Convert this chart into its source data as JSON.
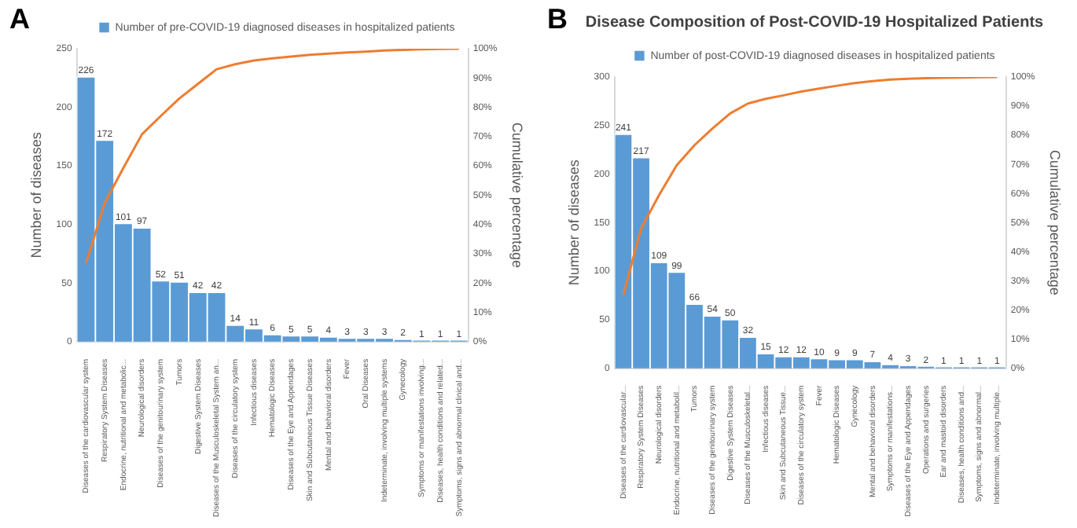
{
  "chart_data": [
    {
      "type": "bar",
      "annotations": [
        "A"
      ],
      "xlabel": null,
      "ylabel": "Number of diseases",
      "y2label": "Cumulative percentage",
      "categories": [
        "Diseases of the cardiovascular system",
        "Respiratory System Diseases",
        "Endocrine, nutritional and metabolic...",
        "Neurological disorders",
        "Diseases of the genitourinary system",
        "Tumors",
        "Digestive System Diseases",
        "Diseases of the Musculoskeletal System an...",
        "Diseases of the circulatory system",
        "Infectious diseases",
        "Hematologic Diseases",
        "Diseases of the Eye and Appendages",
        "Skin and Subcutaneous Tissue Diseases",
        "Mental and behavioral disorders",
        "Fever",
        "Oral Diseases",
        "Indeterminate, involving multiple systems",
        "Gynecology",
        "Symptoms or manifestations involving...",
        "Diseases, health conditions and related...",
        "Symptoms, signs and abnormal clinical and..."
      ],
      "series": [
        {
          "name": "Number of pre-COVID-19 diagnosed diseases in hospitalized patients",
          "color": "#5b9bd5",
          "values": [
            226,
            172,
            101,
            97,
            52,
            51,
            42,
            42,
            14,
            11,
            6,
            5,
            5,
            4,
            3,
            3,
            3,
            2,
            1,
            1,
            1
          ],
          "value_labels": [
            "226",
            "172",
            "101",
            "97",
            "52",
            "51",
            "42",
            "42",
            "14",
            "11",
            "6",
            "5",
            "5",
            "4",
            "3",
            "3",
            "3",
            "2",
            "1",
            "1",
            "1"
          ]
        },
        {
          "type": "line",
          "axis": "y2",
          "color": "#ed7d31",
          "values": [
            26.8,
            47.3,
            59.3,
            70.8,
            77.0,
            83.0,
            88.0,
            93.0,
            94.7,
            96.0,
            96.7,
            97.3,
            97.9,
            98.3,
            98.7,
            99.0,
            99.4,
            99.6,
            99.8,
            99.9,
            100
          ]
        }
      ],
      "ylim": [
        0,
        250
      ],
      "yticks": [
        0,
        50,
        100,
        150,
        200,
        250
      ],
      "y2lim": [
        0,
        100
      ],
      "y2ticks": [
        {
          "value": 0,
          "label": "0%"
        },
        {
          "value": 10,
          "label": "10%"
        },
        {
          "value": 20,
          "label": "20%"
        },
        {
          "value": 30,
          "label": "30%"
        },
        {
          "value": 40,
          "label": "40%"
        },
        {
          "value": 50,
          "label": "50%"
        },
        {
          "value": 60,
          "label": "60%"
        },
        {
          "value": 70,
          "label": "70%"
        },
        {
          "value": 80,
          "label": "80%"
        },
        {
          "value": 90,
          "label": "90%"
        },
        {
          "value": 100,
          "label": "100%"
        }
      ],
      "legend": "top",
      "grid": false,
      "marker": "none"
    },
    {
      "type": "bar",
      "annotations": [
        "B"
      ],
      "title": "Disease Composition of Post-COVID-19 Hospitalized Patients",
      "ylabel": "Number of diseases",
      "y2label": "Cumulative percentage",
      "categories": [
        "Diseases of the cardiovascular...",
        "Respiratory System Diseases",
        "Neurological disorders",
        "Endocrine, nutritional and metabolil...",
        "Tumors",
        "Diseases of the genitourinary system",
        "Digestive System Diseases",
        "Diseases of the Musculoskeletal...",
        "Infectious diseases",
        "Skin and Subcutaneous Tissue...",
        "Diseases of the circulatory system",
        "Fever",
        "Hematologic Diseases",
        "Gynecology",
        "Mental and behavioral disorders",
        "Symptoms or manifestations...",
        "Diseases of the Eye and Appendages",
        "Operations and surgeries",
        "Ear and mastoid disorders",
        "Diseases, health conditions and...",
        "Symptoms, signs and abnormal...",
        "Indeterminate, involving multiple..."
      ],
      "series": [
        {
          "name": "Number of post-COVID-19 diagnosed diseases in hospitalized patients",
          "color": "#5b9bd5",
          "values": [
            241,
            217,
            109,
            99,
            66,
            54,
            50,
            32,
            15,
            12,
            12,
            10,
            9,
            9,
            7,
            4,
            3,
            2,
            1,
            1,
            1,
            1
          ],
          "value_labels": [
            "241",
            "217",
            "109",
            "99",
            "66",
            "54",
            "50",
            "32",
            "15",
            "12",
            "12",
            "10",
            "9",
            "9",
            "7",
            "4",
            "3",
            "2",
            "1",
            "1",
            "1",
            "1"
          ]
        },
        {
          "type": "line",
          "axis": "y2",
          "color": "#ed7d31",
          "values": [
            25.2,
            48.0,
            59.4,
            69.7,
            76.6,
            82.3,
            87.5,
            90.9,
            92.5,
            93.7,
            95.0,
            96.0,
            97.0,
            97.9,
            98.6,
            99.1,
            99.4,
            99.6,
            99.7,
            99.8,
            99.9,
            100
          ]
        }
      ],
      "ylim": [
        0,
        300
      ],
      "yticks": [
        0,
        50,
        100,
        150,
        200,
        250,
        300
      ],
      "y2lim": [
        0,
        100
      ],
      "y2ticks": [
        {
          "value": 0,
          "label": "0%"
        },
        {
          "value": 10,
          "label": "10%"
        },
        {
          "value": 20,
          "label": "20%"
        },
        {
          "value": 30,
          "label": "30%"
        },
        {
          "value": 40,
          "label": "40%"
        },
        {
          "value": 50,
          "label": "50%"
        },
        {
          "value": 60,
          "label": "60%"
        },
        {
          "value": 70,
          "label": "70%"
        },
        {
          "value": 80,
          "label": "80%"
        },
        {
          "value": 90,
          "label": "90%"
        },
        {
          "value": 100,
          "label": "100%"
        }
      ],
      "legend": "top",
      "grid": false,
      "marker": "none"
    }
  ]
}
